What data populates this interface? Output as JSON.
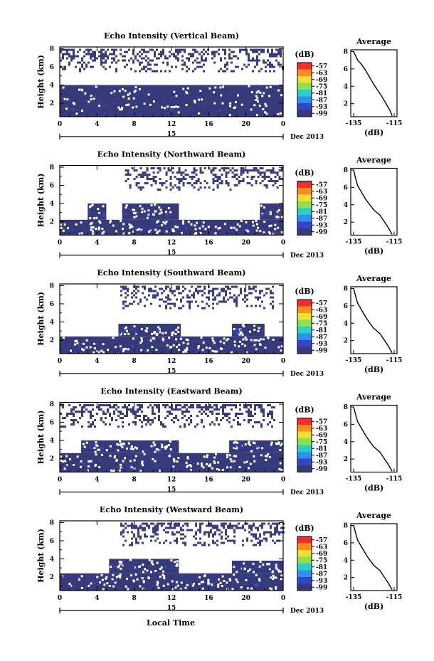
{
  "figure": {
    "xlabel": "Local Time",
    "date_label": "Dec 2013",
    "colorbar_unit": "(dB)",
    "colorbar_ticks": [
      "-57",
      "-63",
      "-69",
      "-75",
      "-81",
      "-87",
      "-93",
      "-99"
    ],
    "colorbar_colors": [
      "#f0302a",
      "#ff8c1e",
      "#f0e030",
      "#8ee050",
      "#2ad0c8",
      "#2e90f0",
      "#3346c8",
      "#363a7a"
    ],
    "echo_color": "#363a7a",
    "avg_title": "Average",
    "avg_xlabel": "(dB)",
    "avg_xticks": [
      "-135",
      "-115"
    ]
  },
  "chart_data": [
    {
      "type": "heatmap",
      "title": "Echo Intensity (Vertical Beam)",
      "ylabel": "Height (km)",
      "x_ticks": [
        "0",
        "4",
        "8",
        "12",
        "16",
        "20",
        "0"
      ],
      "x_day_label": "15",
      "y_ticks": [
        "2",
        "4",
        "6",
        "8"
      ],
      "xlim": [
        0,
        24
      ],
      "ylim": [
        0.5,
        8.2
      ],
      "cloud_layers": [
        {
          "start_h": 0,
          "end_h": 24,
          "top_km": 4.0,
          "bottom_km": 0.5
        },
        {
          "start_h": 0,
          "end_h": 24,
          "top_km": 8.0,
          "bottom_km": 5.5,
          "sparse": true
        }
      ],
      "average_profile": {
        "x": [
          -135,
          -133,
          -131,
          -129,
          -127,
          -125,
          -123,
          -121,
          -119,
          -117,
          -116
        ],
        "height_km": [
          8.0,
          7.0,
          6.5,
          5.8,
          5.0,
          4.2,
          3.5,
          2.8,
          2.0,
          1.2,
          0.6
        ]
      }
    },
    {
      "type": "heatmap",
      "title": "Echo Intensity (Northward Beam)",
      "ylabel": "Height (km)",
      "x_ticks": [
        "0",
        "4",
        "8",
        "12",
        "16",
        "20",
        "0"
      ],
      "x_day_label": "15",
      "y_ticks": [
        "2",
        "4",
        "6",
        "8"
      ],
      "xlim": [
        0,
        24
      ],
      "ylim": [
        0.5,
        8.2
      ],
      "cloud_layers": [
        {
          "start_h": 0,
          "end_h": 24,
          "top_km": 2.2,
          "bottom_km": 0.5
        },
        {
          "start_h": 3.0,
          "end_h": 5.0,
          "top_km": 4.0,
          "bottom_km": 2.2
        },
        {
          "start_h": 6.7,
          "end_h": 12.8,
          "top_km": 4.0,
          "bottom_km": 2.2
        },
        {
          "start_h": 21.5,
          "end_h": 24,
          "top_km": 4.0,
          "bottom_km": 2.2
        },
        {
          "start_h": 7.0,
          "end_h": 24,
          "top_km": 8.0,
          "bottom_km": 5.6,
          "sparse": true
        }
      ],
      "average_profile": {
        "x": [
          -135,
          -134,
          -133,
          -131,
          -129,
          -127,
          -125,
          -122,
          -120,
          -118,
          -116
        ],
        "height_km": [
          8.0,
          7.0,
          6.2,
          5.4,
          4.6,
          4.0,
          3.4,
          2.8,
          2.1,
          1.4,
          0.6
        ]
      }
    },
    {
      "type": "heatmap",
      "title": "Echo Intensity (Southward Beam)",
      "ylabel": "Height (km)",
      "x_ticks": [
        "0",
        "4",
        "8",
        "12",
        "16",
        "20",
        "0"
      ],
      "x_day_label": "15",
      "y_ticks": [
        "2",
        "4",
        "6",
        "8"
      ],
      "xlim": [
        0,
        24
      ],
      "ylim": [
        0.5,
        8.2
      ],
      "cloud_layers": [
        {
          "start_h": 0,
          "end_h": 24,
          "top_km": 2.4,
          "bottom_km": 0.5
        },
        {
          "start_h": 6.3,
          "end_h": 13.0,
          "top_km": 3.8,
          "bottom_km": 2.4
        },
        {
          "start_h": 18.5,
          "end_h": 22.0,
          "top_km": 3.8,
          "bottom_km": 2.4
        },
        {
          "start_h": 6.5,
          "end_h": 23,
          "top_km": 8.0,
          "bottom_km": 5.5,
          "sparse": true
        }
      ],
      "average_profile": {
        "x": [
          -135,
          -134,
          -133,
          -131,
          -129,
          -127,
          -125,
          -122,
          -120,
          -118,
          -116
        ],
        "height_km": [
          8.0,
          7.1,
          6.3,
          5.5,
          4.7,
          4.0,
          3.4,
          2.8,
          2.1,
          1.4,
          0.6
        ]
      }
    },
    {
      "type": "heatmap",
      "title": "Echo Intensity (Eastward Beam)",
      "ylabel": "Height (km)",
      "x_ticks": [
        "0",
        "4",
        "8",
        "12",
        "16",
        "20",
        "0"
      ],
      "x_day_label": "15",
      "y_ticks": [
        "2",
        "4",
        "6",
        "8"
      ],
      "xlim": [
        0,
        24
      ],
      "ylim": [
        0.5,
        8.2
      ],
      "cloud_layers": [
        {
          "start_h": 0,
          "end_h": 24,
          "top_km": 2.6,
          "bottom_km": 0.5
        },
        {
          "start_h": 2.3,
          "end_h": 12.8,
          "top_km": 4.0,
          "bottom_km": 2.6
        },
        {
          "start_h": 18.2,
          "end_h": 24,
          "top_km": 4.0,
          "bottom_km": 2.6
        },
        {
          "start_h": 0,
          "end_h": 23,
          "top_km": 8.0,
          "bottom_km": 5.6,
          "sparse": true
        }
      ],
      "average_profile": {
        "x": [
          -135,
          -134,
          -133,
          -131,
          -129,
          -127,
          -125,
          -122,
          -120,
          -118,
          -116
        ],
        "height_km": [
          8.0,
          7.1,
          6.3,
          5.5,
          4.7,
          4.0,
          3.4,
          2.8,
          2.1,
          1.4,
          0.6
        ]
      }
    },
    {
      "type": "heatmap",
      "title": "Echo Intensity (Westward Beam)",
      "ylabel": "Height (km)",
      "x_ticks": [
        "0",
        "4",
        "8",
        "12",
        "16",
        "20",
        "0"
      ],
      "x_day_label": "15",
      "y_ticks": [
        "2",
        "4",
        "6",
        "8"
      ],
      "xlim": [
        0,
        24
      ],
      "ylim": [
        0.5,
        8.2
      ],
      "cloud_layers": [
        {
          "start_h": 0,
          "end_h": 24,
          "top_km": 2.4,
          "bottom_km": 0.5
        },
        {
          "start_h": 5.3,
          "end_h": 12.8,
          "top_km": 4.0,
          "bottom_km": 2.4
        },
        {
          "start_h": 18.5,
          "end_h": 24,
          "top_km": 3.8,
          "bottom_km": 2.4
        },
        {
          "start_h": 6.5,
          "end_h": 24,
          "top_km": 8.0,
          "bottom_km": 5.6,
          "sparse": true
        }
      ],
      "average_profile": {
        "x": [
          -135,
          -134,
          -133,
          -131,
          -129,
          -127,
          -125,
          -122,
          -120,
          -118,
          -116
        ],
        "height_km": [
          8.0,
          7.1,
          6.3,
          5.5,
          4.7,
          4.0,
          3.4,
          2.8,
          2.1,
          1.4,
          0.6
        ]
      }
    }
  ]
}
